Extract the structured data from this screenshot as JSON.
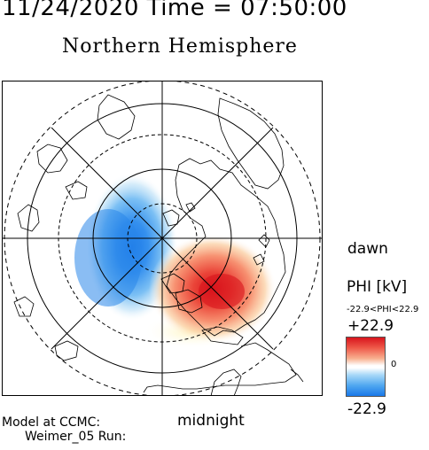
{
  "header": {
    "datetime": "11/24/2020 Time = 07:50:00",
    "title": "Northern Hemisphere"
  },
  "map": {
    "projection": "polar-stereographic",
    "hemisphere": "north",
    "lat_circles_deg": [
      80,
      70,
      60,
      50
    ],
    "meridian_lines": 8,
    "dawn_label": "dawn",
    "midnight_label": "midnight"
  },
  "colorbar": {
    "title": "PHI [kV]",
    "range_text": "-22.9<PHI<22.9",
    "max_label": "+22.9",
    "zero_label": "0",
    "min_label": "-22.9",
    "max_value": 22.9,
    "min_value": -22.9,
    "colors": {
      "positive": "#d8141c",
      "neutral": "#ffffff",
      "negative": "#1a78e8"
    }
  },
  "footer": {
    "model_line1": "Model at CCMC:",
    "model_line2": "Weimer_05 Run:"
  }
}
